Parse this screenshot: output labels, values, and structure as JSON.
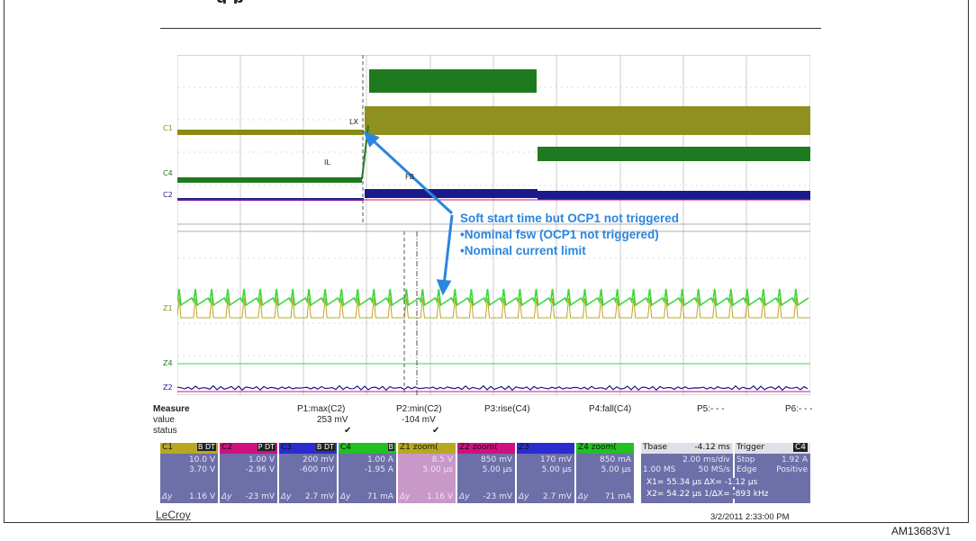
{
  "figure_code": "AM13683V1",
  "title_fragment": "g                    p",
  "brand": "LeCroy",
  "timestamp": "3/2/2011 2:33:00 PM",
  "colors": {
    "c1": "#8a8a14",
    "c2": "#d01080",
    "c3": "#1a1a8c",
    "c4": "#1e7a1e",
    "zoom_green": "#3ad83a",
    "annotation": "#2a86e0",
    "tile_bg": "#6d6fa8"
  },
  "waveform_labels": {
    "lx": "LX",
    "il": "IL",
    "fb": "FB"
  },
  "channel_markers": {
    "c1": "C1",
    "c4": "C4",
    "c2": "C2",
    "z1": "Z1",
    "z4": "Z4",
    "z2": "Z2"
  },
  "annotation": {
    "line1": "Soft start time but OCP1 not triggered",
    "line2": "•Nominal fsw (OCP1 not triggered)",
    "line3": "•Nominal current limit"
  },
  "measure": {
    "header_label": "Measure",
    "value_label": "value",
    "status_label": "status",
    "params": [
      {
        "name": "P1:max(C2)",
        "value": "253 mV",
        "status": "✔"
      },
      {
        "name": "P2:min(C2)",
        "value": "-104 mV",
        "status": "✔"
      },
      {
        "name": "P3:rise(C4)",
        "value": "",
        "status": ""
      },
      {
        "name": "P4:fall(C4)",
        "value": "",
        "status": ""
      },
      {
        "name": "P5:- - -",
        "value": "",
        "status": ""
      },
      {
        "name": "P6:- - -",
        "value": "",
        "status": ""
      }
    ]
  },
  "tiles": [
    {
      "name": "C1",
      "tag": "B DT",
      "v1": "10.0 V",
      "v2": "3.70 V",
      "dy": "Δy",
      "dyv": "1.16 V",
      "hdr_color": "#b8a820"
    },
    {
      "name": "C2",
      "tag": "P DT",
      "v1": "1.00 V",
      "v2": "-2.96 V",
      "dy": "Δy",
      "dyv": "-23 mV",
      "hdr_color": "#d01080"
    },
    {
      "name": "C3",
      "tag": "B DT",
      "v1": "200 mV",
      "v2": "-600 mV",
      "dy": "Δy",
      "dyv": "2.7 mV",
      "hdr_color": "#2b2bd0"
    },
    {
      "name": "C4",
      "tag": "B",
      "v1": "1.00 A",
      "v2": "-1.95 A",
      "dy": "Δy",
      "dyv": "71 mA",
      "hdr_color": "#22c022"
    },
    {
      "name": "Z1 zoom(",
      "tag": "",
      "v1": "8.5 V",
      "v2": "5.00 µs",
      "dy": "Δy",
      "dyv": "1.16 V",
      "hdr_color": "#b8a820"
    },
    {
      "name": "Z2 zoom(",
      "tag": "",
      "v1": "850 mV",
      "v2": "5.00 µs",
      "dy": "Δy",
      "dyv": "-23 mV",
      "hdr_color": "#d01080"
    },
    {
      "name": "Z3",
      "tag": "",
      "v1": "170 mV",
      "v2": "5.00 µs",
      "dy": "Δy",
      "dyv": "2.7 mV",
      "hdr_color": "#2b2bd0"
    },
    {
      "name": "Z4 zoom(",
      "tag": "",
      "v1": "850 mA",
      "v2": "5.00 µs",
      "dy": "Δy",
      "dyv": "71 mA",
      "hdr_color": "#22c022"
    }
  ],
  "timebase": {
    "label": "Tbase",
    "offset": "-4.12 ms",
    "per_div": "2.00 ms/div",
    "samples": "1.00 MS",
    "rate": "50 MS/s"
  },
  "trigger": {
    "label": "Trigger",
    "channel": "C4",
    "mode": "Stop",
    "level": "1.92 A",
    "type": "Edge",
    "slope": "Positive"
  },
  "cursors": {
    "x1": "X1=  55.34 µs",
    "dx": "ΔX=   -1.12 µs",
    "x2": "X2=  54.22 µs",
    "inv_dx": "1/ΔX=  -893 kHz"
  }
}
